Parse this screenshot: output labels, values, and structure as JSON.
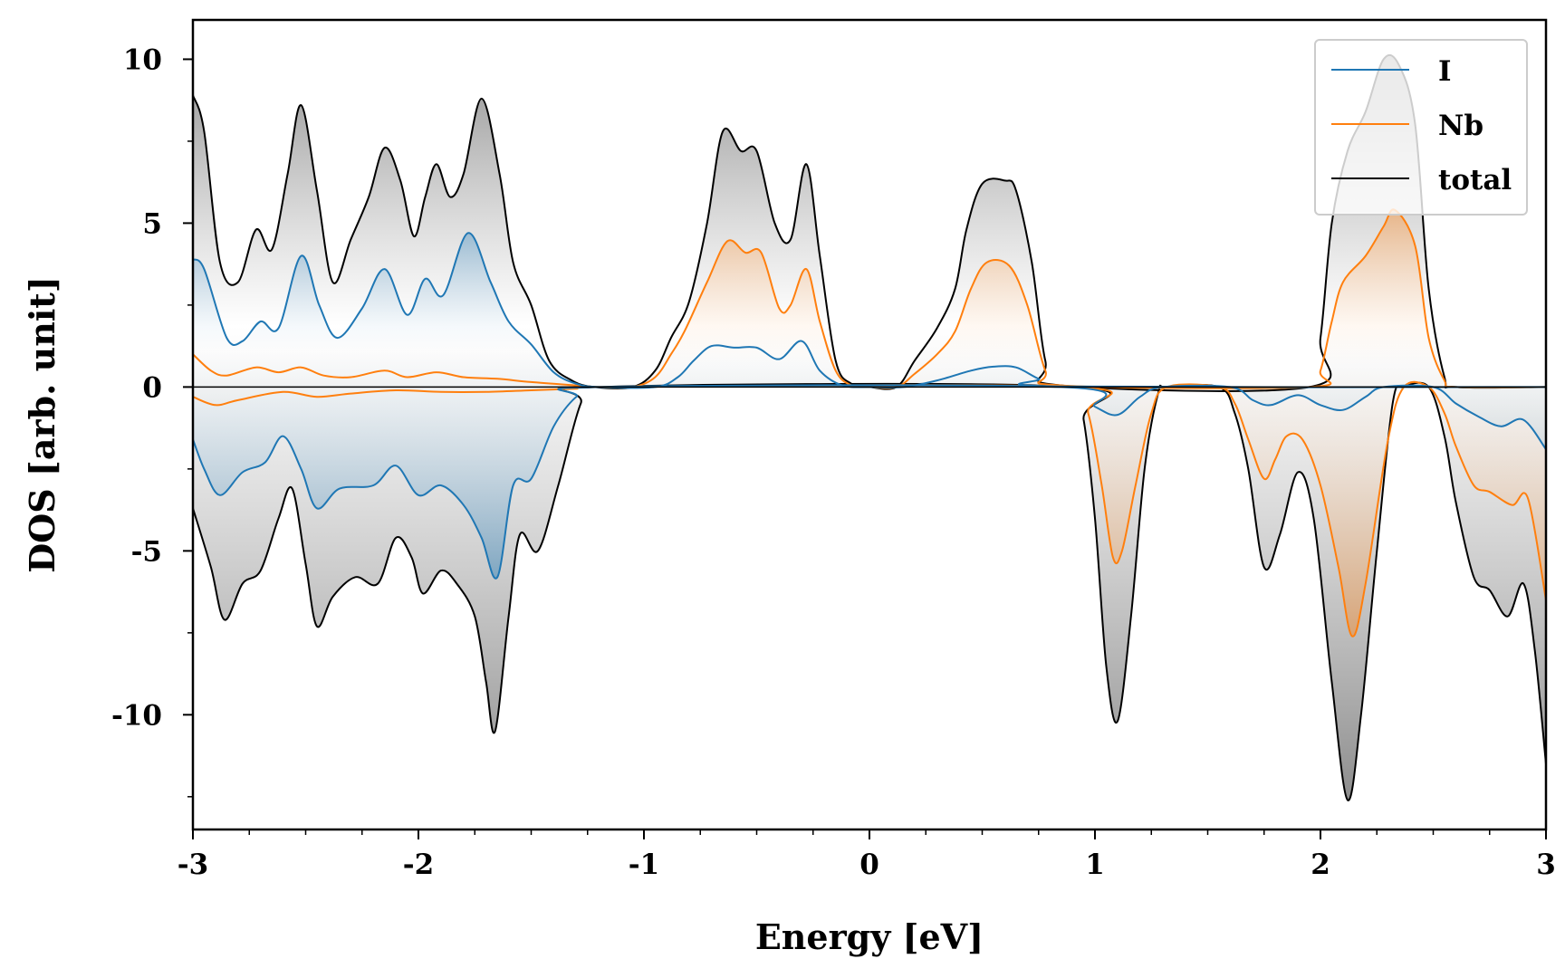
{
  "chart_data": {
    "type": "area",
    "title": "",
    "xlabel": "Energy [eV]",
    "ylabel": "DOS [arb. unit]",
    "xlim": [
      -3,
      3
    ],
    "ylim": [
      -13.5,
      11.2
    ],
    "xticks": [
      -3,
      -2,
      -1,
      0,
      1,
      2,
      3
    ],
    "xtick_labels": [
      "-3",
      "-2",
      "-1",
      "0",
      "1",
      "2",
      "3"
    ],
    "yticks": [
      -10,
      -5,
      0,
      5,
      10
    ],
    "ytick_labels": [
      "-10",
      "-5",
      "0",
      "5",
      "10"
    ],
    "legend_position": "top-right",
    "grid": false,
    "colors": {
      "I": "#1f77b4",
      "Nb": "#ff7f0e",
      "total": "#000000"
    },
    "series": [
      {
        "name": "I",
        "up": [
          [
            -3.0,
            3.9
          ],
          [
            -2.95,
            3.6
          ],
          [
            -2.85,
            1.5
          ],
          [
            -2.78,
            1.4
          ],
          [
            -2.7,
            2.0
          ],
          [
            -2.62,
            1.8
          ],
          [
            -2.52,
            4.0
          ],
          [
            -2.44,
            2.5
          ],
          [
            -2.36,
            1.5
          ],
          [
            -2.25,
            2.4
          ],
          [
            -2.15,
            3.6
          ],
          [
            -2.05,
            2.2
          ],
          [
            -1.97,
            3.3
          ],
          [
            -1.89,
            2.8
          ],
          [
            -1.78,
            4.7
          ],
          [
            -1.68,
            3.2
          ],
          [
            -1.6,
            2.0
          ],
          [
            -1.5,
            1.3
          ],
          [
            -1.4,
            0.45
          ],
          [
            -1.3,
            0.1
          ],
          [
            -1.2,
            0.0
          ],
          [
            -0.95,
            0.0
          ],
          [
            -0.85,
            0.3
          ],
          [
            -0.78,
            0.8
          ],
          [
            -0.7,
            1.25
          ],
          [
            -0.6,
            1.2
          ],
          [
            -0.5,
            1.2
          ],
          [
            -0.4,
            0.85
          ],
          [
            -0.3,
            1.4
          ],
          [
            -0.22,
            0.5
          ],
          [
            -0.12,
            0.05
          ],
          [
            0.0,
            0.0
          ],
          [
            0.15,
            0.0
          ],
          [
            0.3,
            0.2
          ],
          [
            0.45,
            0.5
          ],
          [
            0.55,
            0.62
          ],
          [
            0.65,
            0.6
          ],
          [
            0.75,
            0.25
          ],
          [
            0.85,
            0.02
          ],
          [
            3.0,
            0.0
          ]
        ],
        "down": [
          [
            -3.0,
            -1.6
          ],
          [
            -2.95,
            -2.5
          ],
          [
            -2.88,
            -3.3
          ],
          [
            -2.78,
            -2.6
          ],
          [
            -2.68,
            -2.3
          ],
          [
            -2.6,
            -1.5
          ],
          [
            -2.52,
            -2.5
          ],
          [
            -2.45,
            -3.7
          ],
          [
            -2.35,
            -3.1
          ],
          [
            -2.2,
            -3.0
          ],
          [
            -2.1,
            -2.4
          ],
          [
            -2.0,
            -3.3
          ],
          [
            -1.9,
            -3.0
          ],
          [
            -1.8,
            -3.6
          ],
          [
            -1.72,
            -4.6
          ],
          [
            -1.65,
            -5.8
          ],
          [
            -1.58,
            -3.0
          ],
          [
            -1.5,
            -2.8
          ],
          [
            -1.4,
            -1.2
          ],
          [
            -1.3,
            -0.3
          ],
          [
            -1.2,
            0.0
          ],
          [
            0.85,
            0.0
          ],
          [
            1.0,
            -0.6
          ],
          [
            1.1,
            -0.85
          ],
          [
            1.2,
            -0.3
          ],
          [
            1.3,
            0.0
          ],
          [
            1.6,
            0.0
          ],
          [
            1.7,
            -0.4
          ],
          [
            1.78,
            -0.55
          ],
          [
            1.9,
            -0.25
          ],
          [
            2.0,
            -0.55
          ],
          [
            2.1,
            -0.7
          ],
          [
            2.2,
            -0.3
          ],
          [
            2.28,
            0.0
          ],
          [
            2.5,
            0.0
          ],
          [
            2.6,
            -0.5
          ],
          [
            2.7,
            -0.9
          ],
          [
            2.8,
            -1.2
          ],
          [
            2.9,
            -1.0
          ],
          [
            3.0,
            -1.9
          ]
        ]
      },
      {
        "name": "Nb",
        "up": [
          [
            -3.0,
            1.0
          ],
          [
            -2.92,
            0.5
          ],
          [
            -2.85,
            0.35
          ],
          [
            -2.72,
            0.6
          ],
          [
            -2.62,
            0.45
          ],
          [
            -2.52,
            0.6
          ],
          [
            -2.42,
            0.35
          ],
          [
            -2.3,
            0.3
          ],
          [
            -2.15,
            0.5
          ],
          [
            -2.05,
            0.3
          ],
          [
            -1.92,
            0.45
          ],
          [
            -1.8,
            0.3
          ],
          [
            -1.65,
            0.25
          ],
          [
            -1.5,
            0.15
          ],
          [
            -1.3,
            0.05
          ],
          [
            -1.2,
            0.0
          ],
          [
            -1.05,
            0.0
          ],
          [
            -0.95,
            0.3
          ],
          [
            -0.88,
            1.0
          ],
          [
            -0.82,
            1.7
          ],
          [
            -0.72,
            3.2
          ],
          [
            -0.63,
            4.45
          ],
          [
            -0.55,
            4.1
          ],
          [
            -0.48,
            4.1
          ],
          [
            -0.4,
            2.4
          ],
          [
            -0.35,
            2.5
          ],
          [
            -0.28,
            3.6
          ],
          [
            -0.22,
            2.0
          ],
          [
            -0.15,
            0.5
          ],
          [
            -0.08,
            0.05
          ],
          [
            0.0,
            0.0
          ],
          [
            0.12,
            0.0
          ],
          [
            0.2,
            0.4
          ],
          [
            0.3,
            1.0
          ],
          [
            0.38,
            1.7
          ],
          [
            0.45,
            3.0
          ],
          [
            0.52,
            3.8
          ],
          [
            0.62,
            3.7
          ],
          [
            0.7,
            2.5
          ],
          [
            0.78,
            0.5
          ],
          [
            0.85,
            0.05
          ],
          [
            1.95,
            0.0
          ],
          [
            2.0,
            0.5
          ],
          [
            2.05,
            2.0
          ],
          [
            2.1,
            3.2
          ],
          [
            2.2,
            4.0
          ],
          [
            2.28,
            4.9
          ],
          [
            2.33,
            5.4
          ],
          [
            2.42,
            4.3
          ],
          [
            2.48,
            1.5
          ],
          [
            2.55,
            0.2
          ],
          [
            2.6,
            0.0
          ],
          [
            3.0,
            0.0
          ]
        ],
        "down": [
          [
            -3.0,
            -0.3
          ],
          [
            -2.9,
            -0.55
          ],
          [
            -2.8,
            -0.4
          ],
          [
            -2.6,
            -0.15
          ],
          [
            -2.45,
            -0.3
          ],
          [
            -2.3,
            -0.2
          ],
          [
            -2.1,
            -0.1
          ],
          [
            -1.9,
            -0.15
          ],
          [
            -1.7,
            -0.15
          ],
          [
            -1.5,
            -0.1
          ],
          [
            -1.3,
            -0.05
          ],
          [
            -1.2,
            0.0
          ],
          [
            0.9,
            0.0
          ],
          [
            0.97,
            -0.8
          ],
          [
            1.03,
            -3.0
          ],
          [
            1.08,
            -5.2
          ],
          [
            1.12,
            -5.0
          ],
          [
            1.18,
            -3.0
          ],
          [
            1.25,
            -0.8
          ],
          [
            1.32,
            0.0
          ],
          [
            1.55,
            0.0
          ],
          [
            1.62,
            -0.5
          ],
          [
            1.68,
            -1.6
          ],
          [
            1.75,
            -2.8
          ],
          [
            1.8,
            -2.2
          ],
          [
            1.85,
            -1.5
          ],
          [
            1.92,
            -1.6
          ],
          [
            2.0,
            -3.0
          ],
          [
            2.08,
            -5.5
          ],
          [
            2.14,
            -7.6
          ],
          [
            2.2,
            -6.0
          ],
          [
            2.3,
            -1.6
          ],
          [
            2.37,
            0.0
          ],
          [
            2.48,
            0.0
          ],
          [
            2.55,
            -0.8
          ],
          [
            2.6,
            -1.8
          ],
          [
            2.68,
            -3.0
          ],
          [
            2.75,
            -3.2
          ],
          [
            2.85,
            -3.6
          ],
          [
            2.92,
            -3.4
          ],
          [
            3.0,
            -6.5
          ]
        ]
      },
      {
        "name": "total",
        "up": [
          [
            -3.0,
            8.9
          ],
          [
            -2.95,
            7.8
          ],
          [
            -2.88,
            3.8
          ],
          [
            -2.8,
            3.2
          ],
          [
            -2.72,
            4.8
          ],
          [
            -2.65,
            4.2
          ],
          [
            -2.58,
            6.5
          ],
          [
            -2.52,
            8.6
          ],
          [
            -2.45,
            6.0
          ],
          [
            -2.38,
            3.2
          ],
          [
            -2.3,
            4.5
          ],
          [
            -2.22,
            5.8
          ],
          [
            -2.15,
            7.3
          ],
          [
            -2.08,
            6.3
          ],
          [
            -2.02,
            4.6
          ],
          [
            -1.97,
            5.8
          ],
          [
            -1.92,
            6.8
          ],
          [
            -1.86,
            5.8
          ],
          [
            -1.8,
            6.5
          ],
          [
            -1.72,
            8.8
          ],
          [
            -1.64,
            6.5
          ],
          [
            -1.58,
            3.8
          ],
          [
            -1.5,
            2.5
          ],
          [
            -1.42,
            0.8
          ],
          [
            -1.32,
            0.2
          ],
          [
            -1.22,
            0.0
          ],
          [
            -1.05,
            0.0
          ],
          [
            -0.95,
            0.5
          ],
          [
            -0.88,
            1.5
          ],
          [
            -0.8,
            2.6
          ],
          [
            -0.72,
            5.0
          ],
          [
            -0.65,
            7.8
          ],
          [
            -0.57,
            7.2
          ],
          [
            -0.5,
            7.2
          ],
          [
            -0.42,
            5.0
          ],
          [
            -0.35,
            4.5
          ],
          [
            -0.28,
            6.8
          ],
          [
            -0.22,
            4.0
          ],
          [
            -0.15,
            0.8
          ],
          [
            -0.08,
            0.1
          ],
          [
            0.0,
            0.0
          ],
          [
            0.12,
            0.0
          ],
          [
            0.2,
            0.8
          ],
          [
            0.3,
            1.8
          ],
          [
            0.38,
            3.0
          ],
          [
            0.43,
            4.8
          ],
          [
            0.5,
            6.2
          ],
          [
            0.6,
            6.3
          ],
          [
            0.65,
            6.0
          ],
          [
            0.72,
            3.8
          ],
          [
            0.78,
            0.8
          ],
          [
            0.85,
            0.05
          ],
          [
            1.95,
            0.0
          ],
          [
            2.0,
            1.5
          ],
          [
            2.05,
            5.0
          ],
          [
            2.12,
            7.2
          ],
          [
            2.2,
            8.4
          ],
          [
            2.28,
            10.0
          ],
          [
            2.35,
            9.8
          ],
          [
            2.42,
            8.0
          ],
          [
            2.48,
            3.0
          ],
          [
            2.55,
            0.3
          ],
          [
            2.6,
            0.0
          ],
          [
            3.0,
            0.0
          ]
        ],
        "down": [
          [
            -3.0,
            -3.7
          ],
          [
            -2.92,
            -5.5
          ],
          [
            -2.86,
            -7.1
          ],
          [
            -2.78,
            -6.0
          ],
          [
            -2.7,
            -5.6
          ],
          [
            -2.62,
            -4.0
          ],
          [
            -2.56,
            -3.1
          ],
          [
            -2.5,
            -5.4
          ],
          [
            -2.45,
            -7.3
          ],
          [
            -2.38,
            -6.4
          ],
          [
            -2.28,
            -5.8
          ],
          [
            -2.18,
            -6.0
          ],
          [
            -2.1,
            -4.6
          ],
          [
            -2.03,
            -5.2
          ],
          [
            -1.98,
            -6.3
          ],
          [
            -1.9,
            -5.6
          ],
          [
            -1.83,
            -6.0
          ],
          [
            -1.75,
            -7.0
          ],
          [
            -1.7,
            -9.0
          ],
          [
            -1.66,
            -10.5
          ],
          [
            -1.6,
            -7.0
          ],
          [
            -1.55,
            -4.5
          ],
          [
            -1.47,
            -5.0
          ],
          [
            -1.38,
            -3.0
          ],
          [
            -1.28,
            -0.5
          ],
          [
            -1.2,
            0.0
          ],
          [
            0.9,
            0.0
          ],
          [
            0.95,
            -1.0
          ],
          [
            1.0,
            -4.0
          ],
          [
            1.05,
            -8.5
          ],
          [
            1.1,
            -10.2
          ],
          [
            1.16,
            -7.0
          ],
          [
            1.22,
            -2.5
          ],
          [
            1.28,
            -0.2
          ],
          [
            1.32,
            0.0
          ],
          [
            1.55,
            0.0
          ],
          [
            1.62,
            -0.8
          ],
          [
            1.68,
            -2.5
          ],
          [
            1.75,
            -5.5
          ],
          [
            1.82,
            -4.5
          ],
          [
            1.9,
            -2.6
          ],
          [
            1.97,
            -4.0
          ],
          [
            2.05,
            -9.0
          ],
          [
            2.12,
            -12.6
          ],
          [
            2.18,
            -10.0
          ],
          [
            2.25,
            -5.0
          ],
          [
            2.32,
            -0.5
          ],
          [
            2.37,
            0.0
          ],
          [
            2.48,
            0.0
          ],
          [
            2.55,
            -1.5
          ],
          [
            2.6,
            -3.5
          ],
          [
            2.68,
            -5.8
          ],
          [
            2.75,
            -6.2
          ],
          [
            2.83,
            -7.0
          ],
          [
            2.9,
            -6.0
          ],
          [
            2.95,
            -8.0
          ],
          [
            3.0,
            -11.5
          ]
        ]
      }
    ]
  }
}
